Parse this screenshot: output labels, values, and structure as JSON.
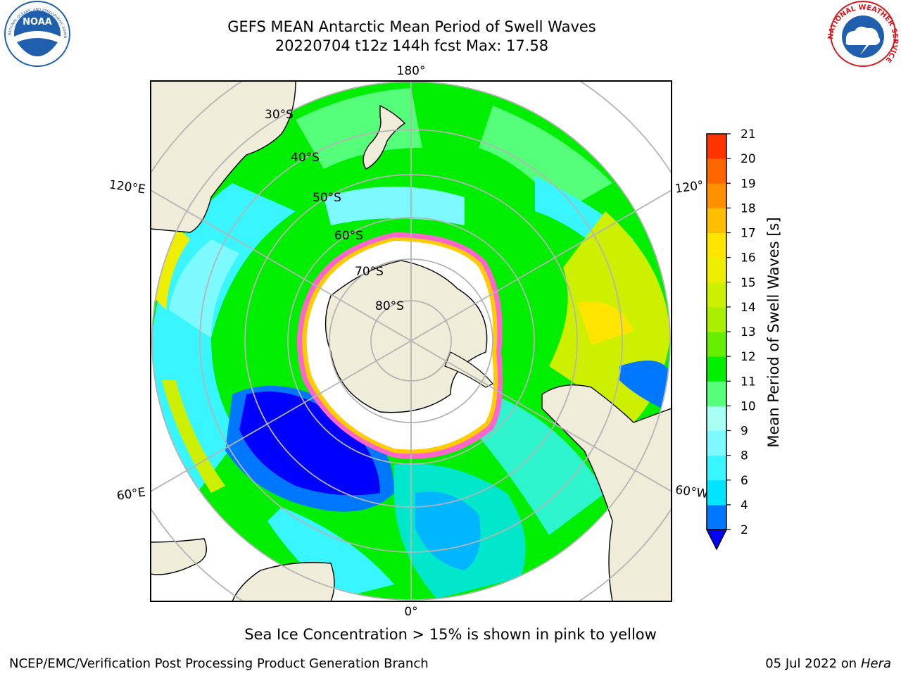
{
  "title": {
    "line1": "GEFS MEAN Antarctic Mean Period of Swell Waves",
    "line2": "20220704 t12z 144h fcst   Max: 17.58"
  },
  "logos": {
    "noaa": {
      "text": "NOAA",
      "ring_text": "NATIONAL OCEANIC AND ATMOSPHERIC ADMINISTRATION · U.S. DEPARTMENT OF COMMERCE",
      "color": "#1f5fae"
    },
    "nws": {
      "ring_text": "NATIONAL WEATHER SERVICE",
      "color": "#d71920"
    }
  },
  "map": {
    "projection": "South Polar Stereographic",
    "longitude_labels": {
      "top": "180°",
      "bottom": "0°",
      "left_upper": "120°E",
      "left_lower": "60°E",
      "right_upper": "120°",
      "right_lower": "60°W"
    },
    "latitude_labels": [
      "30°S",
      "40°S",
      "50°S",
      "60°S",
      "70°S",
      "80°S"
    ],
    "land_color": "#efecda",
    "ice_color": "#ffffff",
    "grid_color": "#b4b4b4"
  },
  "colorbar": {
    "label": "Mean Period of Swell Waves [s]",
    "ticks": [
      "2",
      "4",
      "6",
      "8",
      "9",
      "10",
      "11",
      "12",
      "13",
      "14",
      "15",
      "16",
      "17",
      "18",
      "19",
      "20",
      "21"
    ],
    "colors": [
      "#0077ff",
      "#00e5ff",
      "#38f5ff",
      "#7dfaff",
      "#a8fff4",
      "#55ff7a",
      "#00ee00",
      "#66ee00",
      "#aaee00",
      "#ccf000",
      "#eeee00",
      "#ffe400",
      "#ffbe00",
      "#ff9100",
      "#ff6600",
      "#ff3300",
      "#ff0000"
    ],
    "under_color": "#0000ff"
  },
  "caption": "Sea Ice Concentration > 15% is shown in pink to yellow",
  "footer": {
    "left": "NCEP/EMC/Verification Post Processing Product Generation Branch",
    "date": "05 Jul 2022 on",
    "host": "Hera"
  }
}
